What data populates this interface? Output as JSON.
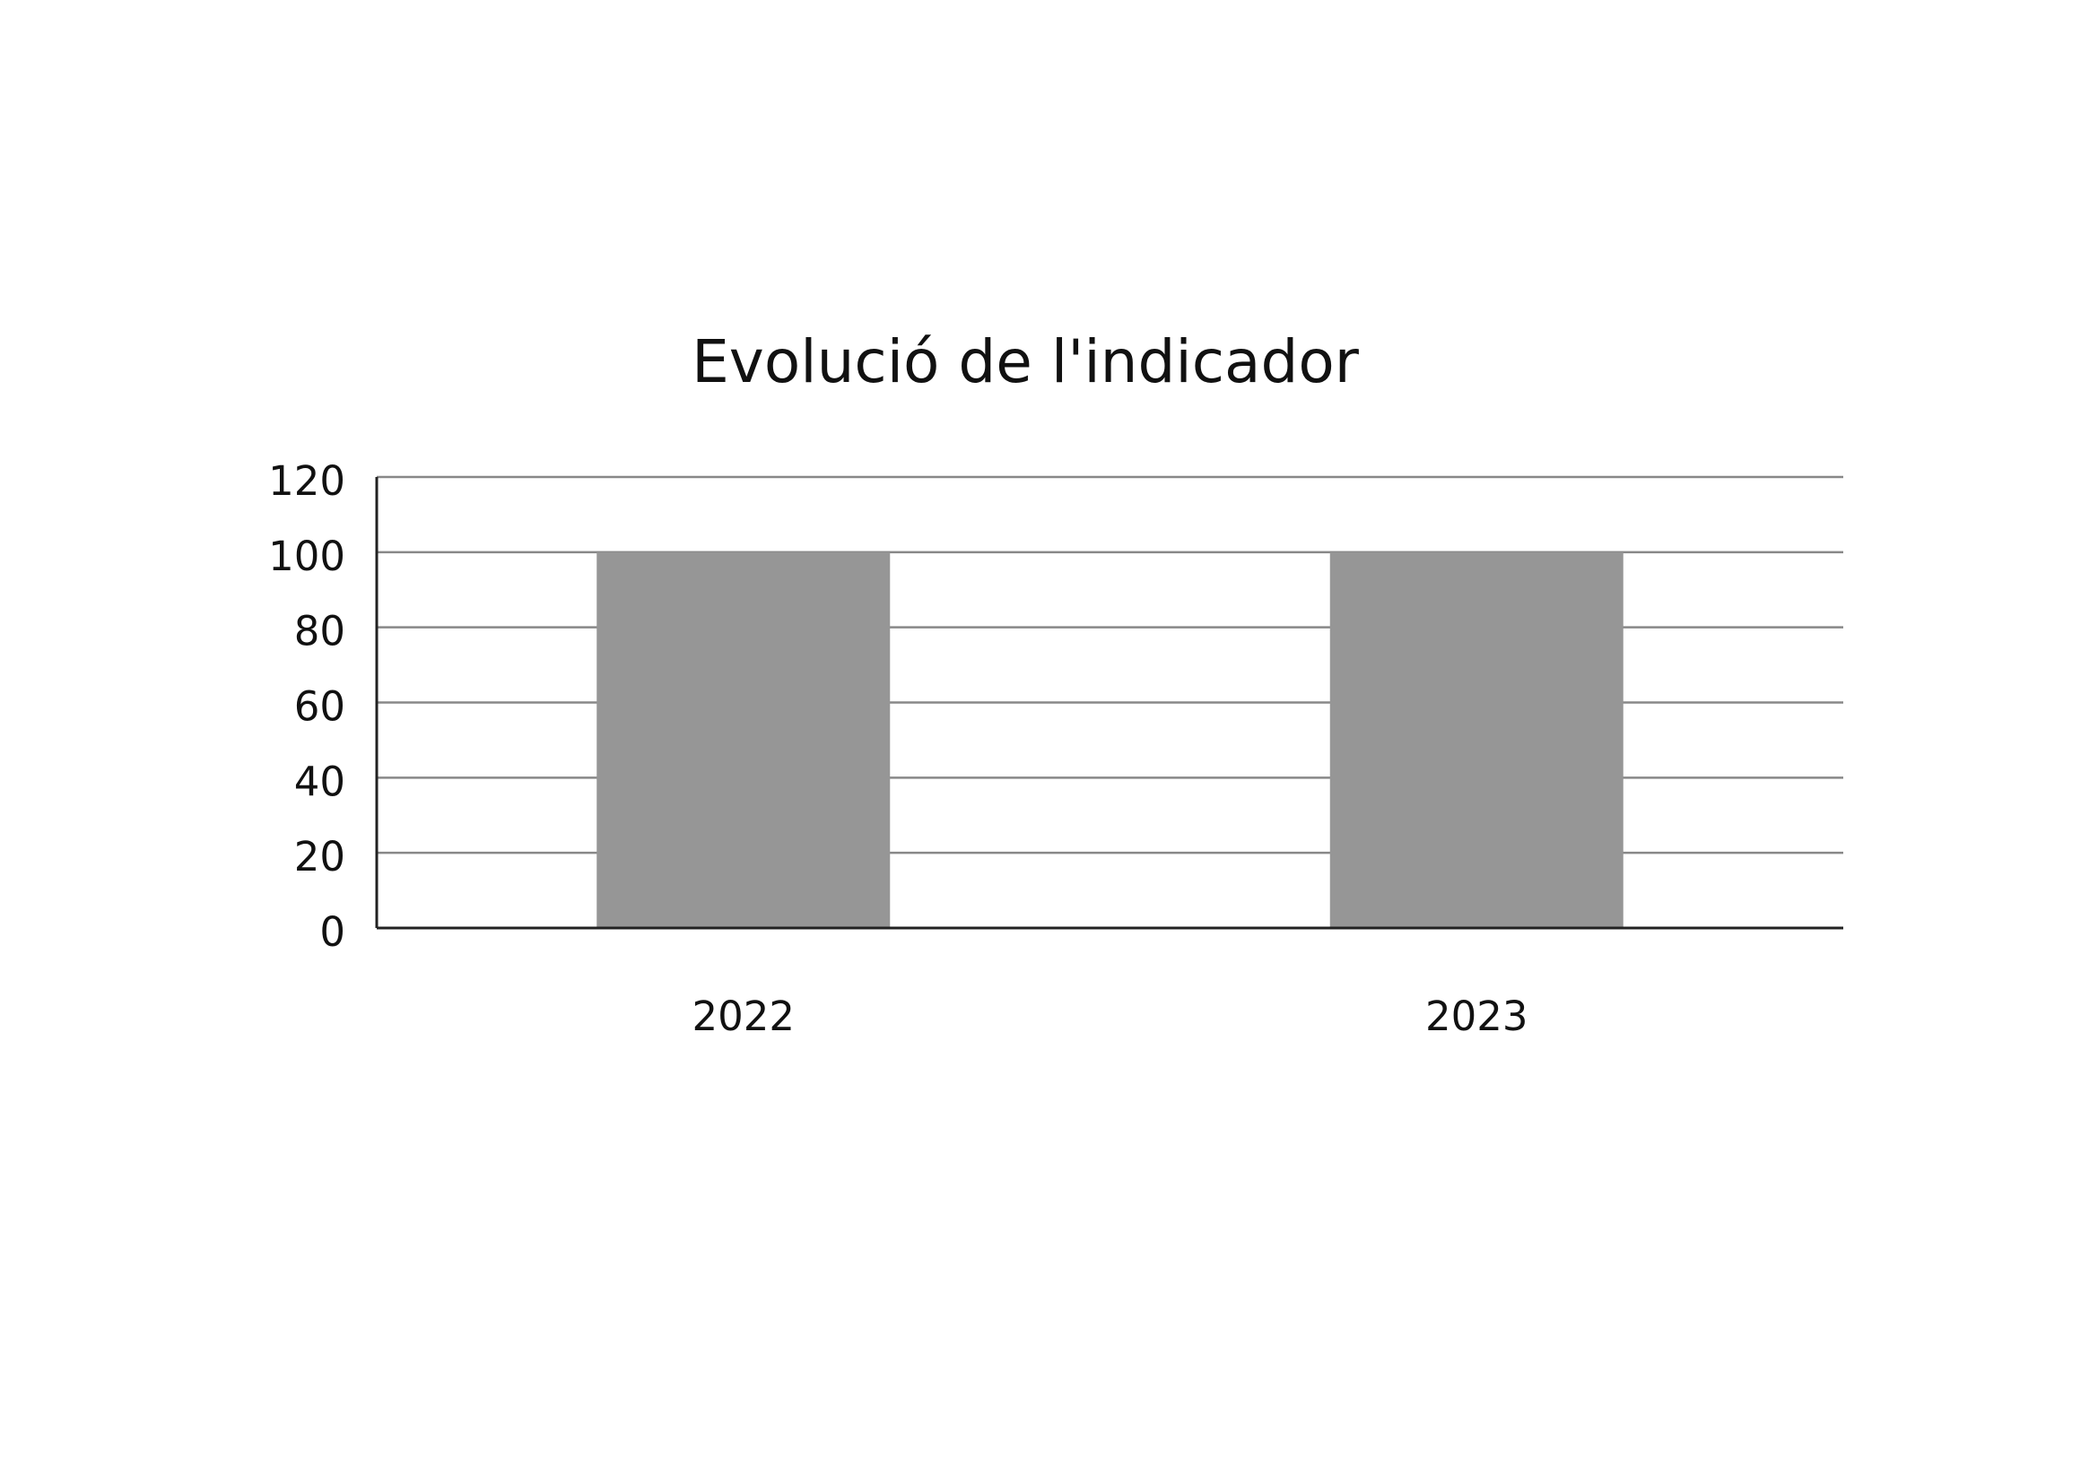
{
  "chart_data": {
    "type": "bar",
    "title": "Evolució de l'indicador",
    "categories": [
      "2022",
      "2023"
    ],
    "values": [
      100,
      100
    ],
    "color": "#969696",
    "ylim": [
      0,
      120
    ],
    "yticks": [
      0,
      20,
      40,
      60,
      80,
      100,
      120
    ],
    "grid": true
  }
}
